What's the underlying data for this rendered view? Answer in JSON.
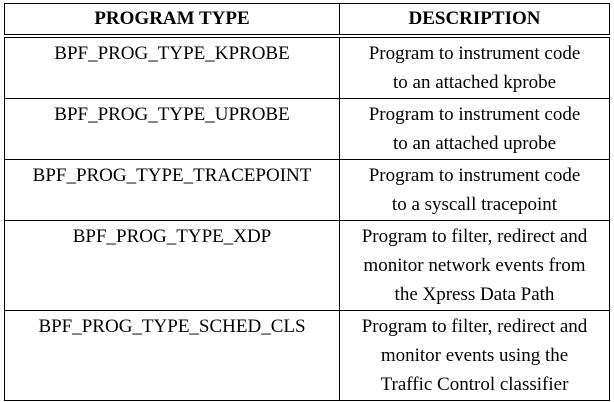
{
  "table": {
    "headers": {
      "program_type": "PROGRAM TYPE",
      "description": "DESCRIPTION"
    },
    "rows": [
      {
        "type": "BPF_PROG_TYPE_KPROBE",
        "description_lines": [
          "Program to instrument code",
          "to an attached kprobe"
        ]
      },
      {
        "type": "BPF_PROG_TYPE_UPROBE",
        "description_lines": [
          "Program to instrument code",
          "to an attached uprobe"
        ]
      },
      {
        "type": "BPF_PROG_TYPE_TRACEPOINT",
        "description_lines": [
          "Program to instrument code",
          "to a syscall tracepoint"
        ]
      },
      {
        "type": "BPF_PROG_TYPE_XDP",
        "description_lines": [
          "Program to filter, redirect and",
          "monitor network events from",
          "the Xpress Data Path"
        ]
      },
      {
        "type": "BPF_PROG_TYPE_SCHED_CLS",
        "description_lines": [
          "Program to filter, redirect and",
          "monitor events using the",
          "Traffic Control classifier"
        ]
      }
    ]
  }
}
